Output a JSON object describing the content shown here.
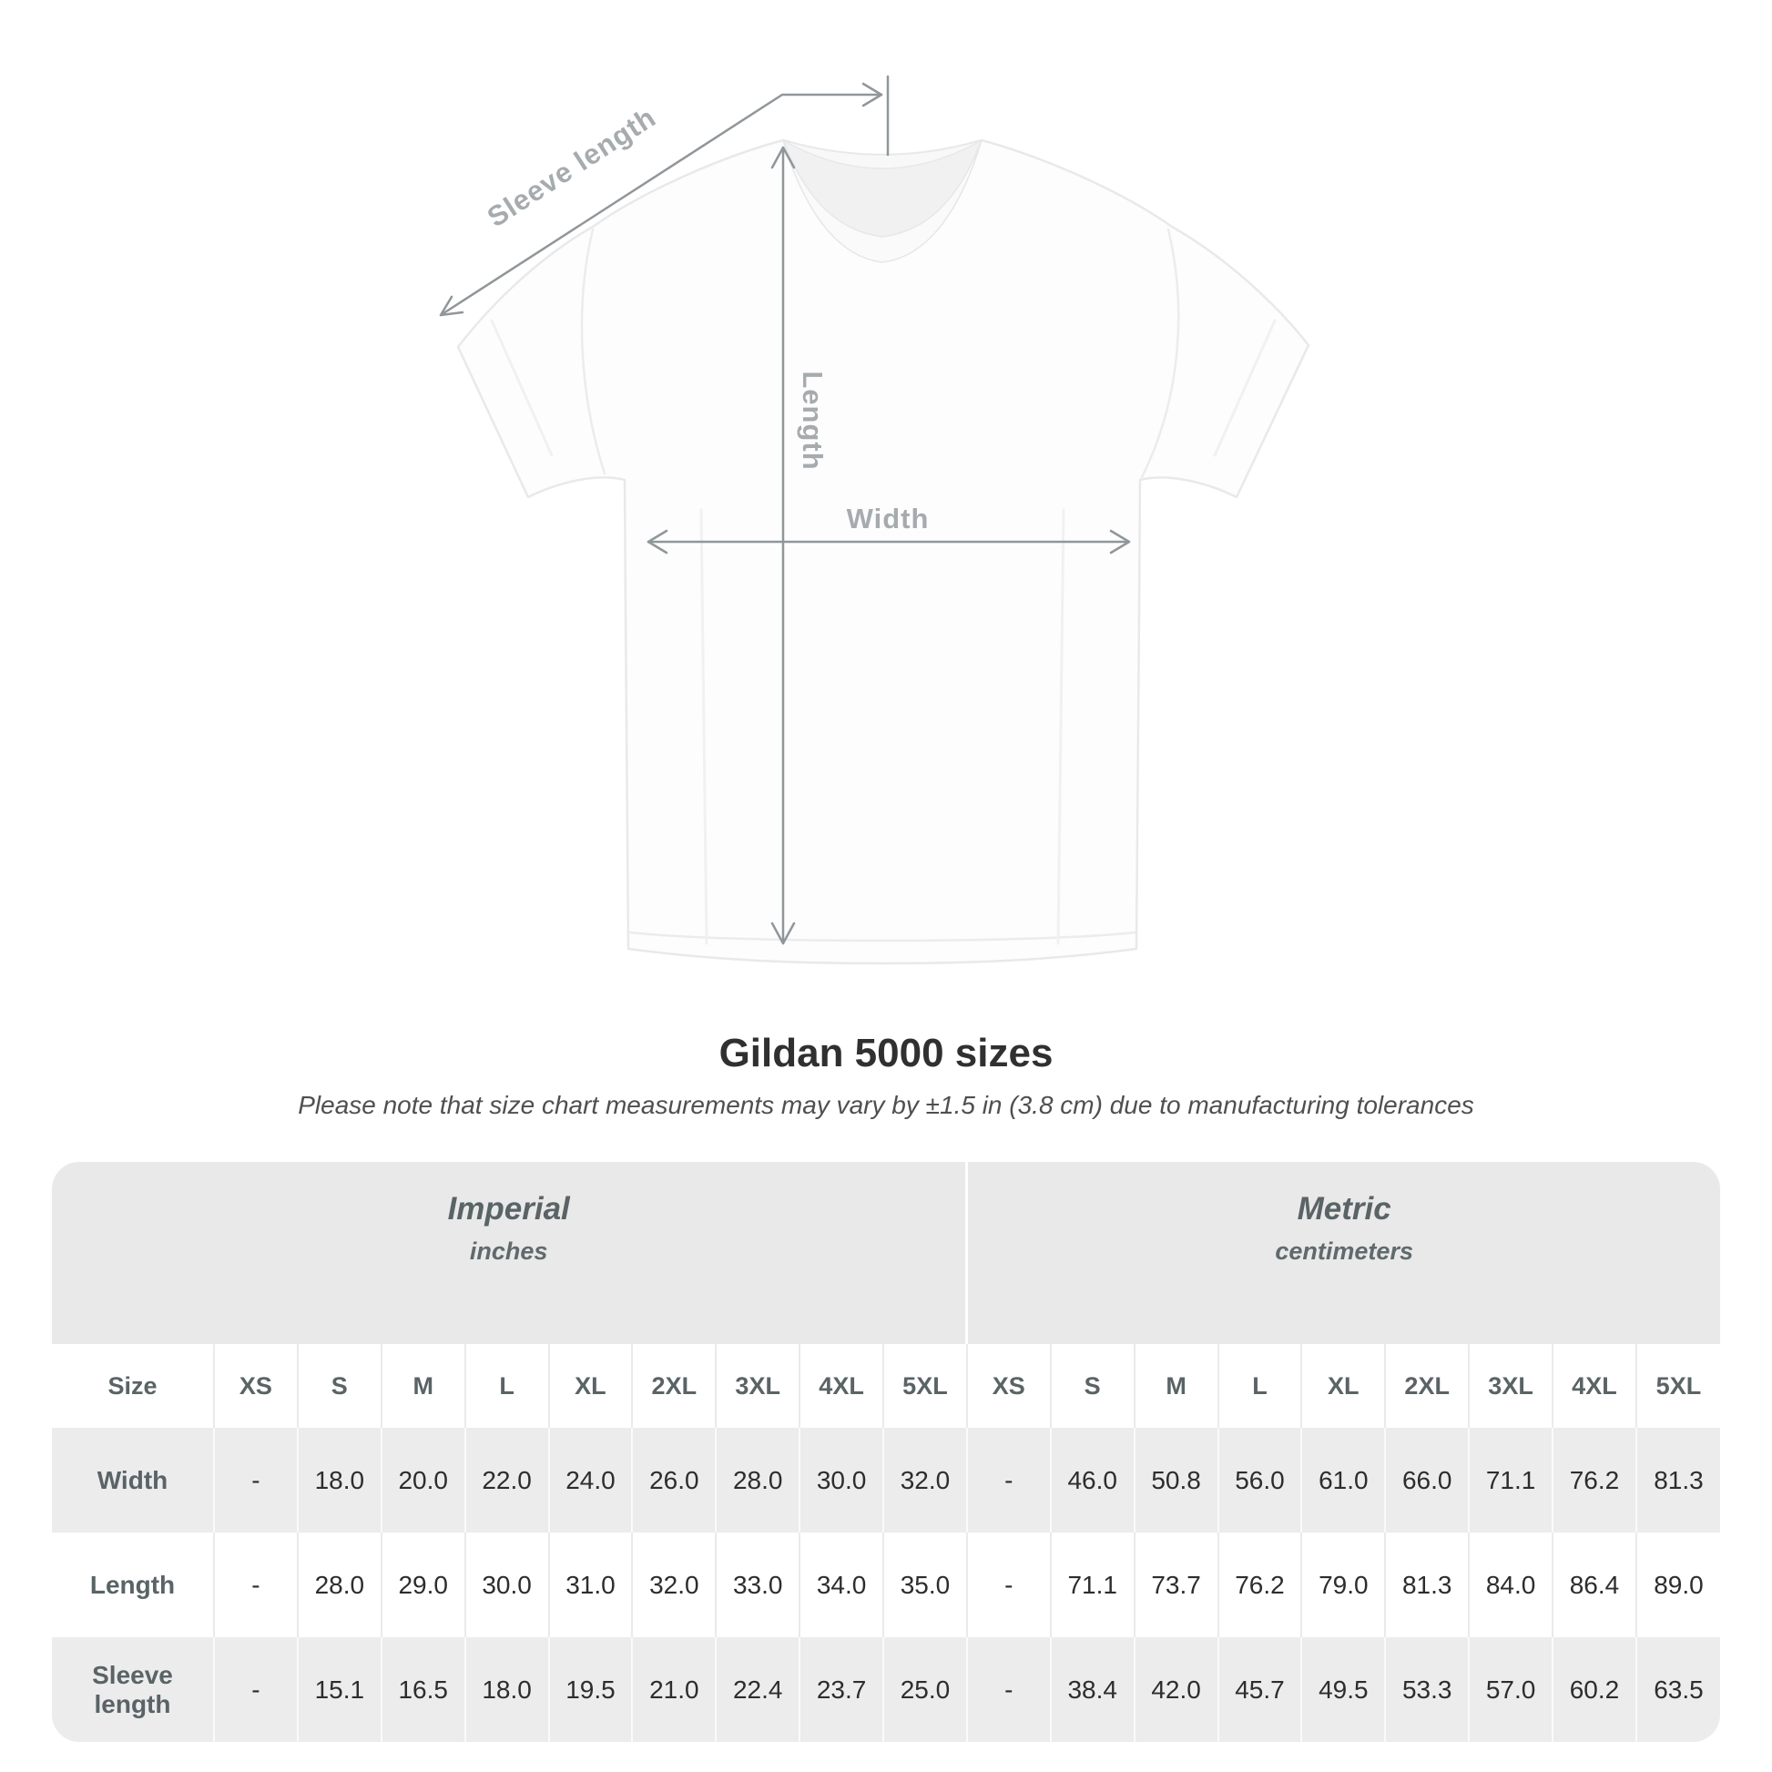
{
  "title": "Gildan 5000 sizes",
  "subtitle": "Please note that size chart measurements may vary by ±1.5 in (3.8 cm) due to manufacturing tolerances",
  "diagram": {
    "labels": {
      "sleeve_length": "Sleeve length",
      "length": "Length",
      "width": "Width"
    },
    "arrow_color": "#909699",
    "label_color": "#a6abae"
  },
  "table": {
    "groups": [
      {
        "label": "Imperial",
        "unit": "inches"
      },
      {
        "label": "Metric",
        "unit": "centimeters"
      }
    ]
  },
  "chart_data": {
    "type": "table",
    "title": "Gildan 5000 sizes",
    "column_groups": [
      {
        "label": "Imperial",
        "unit": "inches",
        "span": 10
      },
      {
        "label": "Metric",
        "unit": "centimeters",
        "span": 9
      }
    ],
    "columns": [
      "Size",
      "XS",
      "S",
      "M",
      "L",
      "XL",
      "2XL",
      "3XL",
      "4XL",
      "5XL",
      "XS",
      "S",
      "M",
      "L",
      "XL",
      "2XL",
      "3XL",
      "4XL",
      "5XL"
    ],
    "rows": [
      {
        "label": "Width",
        "values": [
          "-",
          "18.0",
          "20.0",
          "22.0",
          "24.0",
          "26.0",
          "28.0",
          "30.0",
          "32.0",
          "-",
          "46.0",
          "50.8",
          "56.0",
          "61.0",
          "66.0",
          "71.1",
          "76.2",
          "81.3"
        ]
      },
      {
        "label": "Length",
        "values": [
          "-",
          "28.0",
          "29.0",
          "30.0",
          "31.0",
          "32.0",
          "33.0",
          "34.0",
          "35.0",
          "-",
          "71.1",
          "73.7",
          "76.2",
          "79.0",
          "81.3",
          "84.0",
          "86.4",
          "89.0"
        ]
      },
      {
        "label": "Sleeve length",
        "values": [
          "-",
          "15.1",
          "16.5",
          "18.0",
          "19.5",
          "21.0",
          "22.4",
          "23.7",
          "25.0",
          "-",
          "38.4",
          "42.0",
          "45.7",
          "49.5",
          "53.3",
          "57.0",
          "60.2",
          "63.5"
        ]
      }
    ]
  }
}
